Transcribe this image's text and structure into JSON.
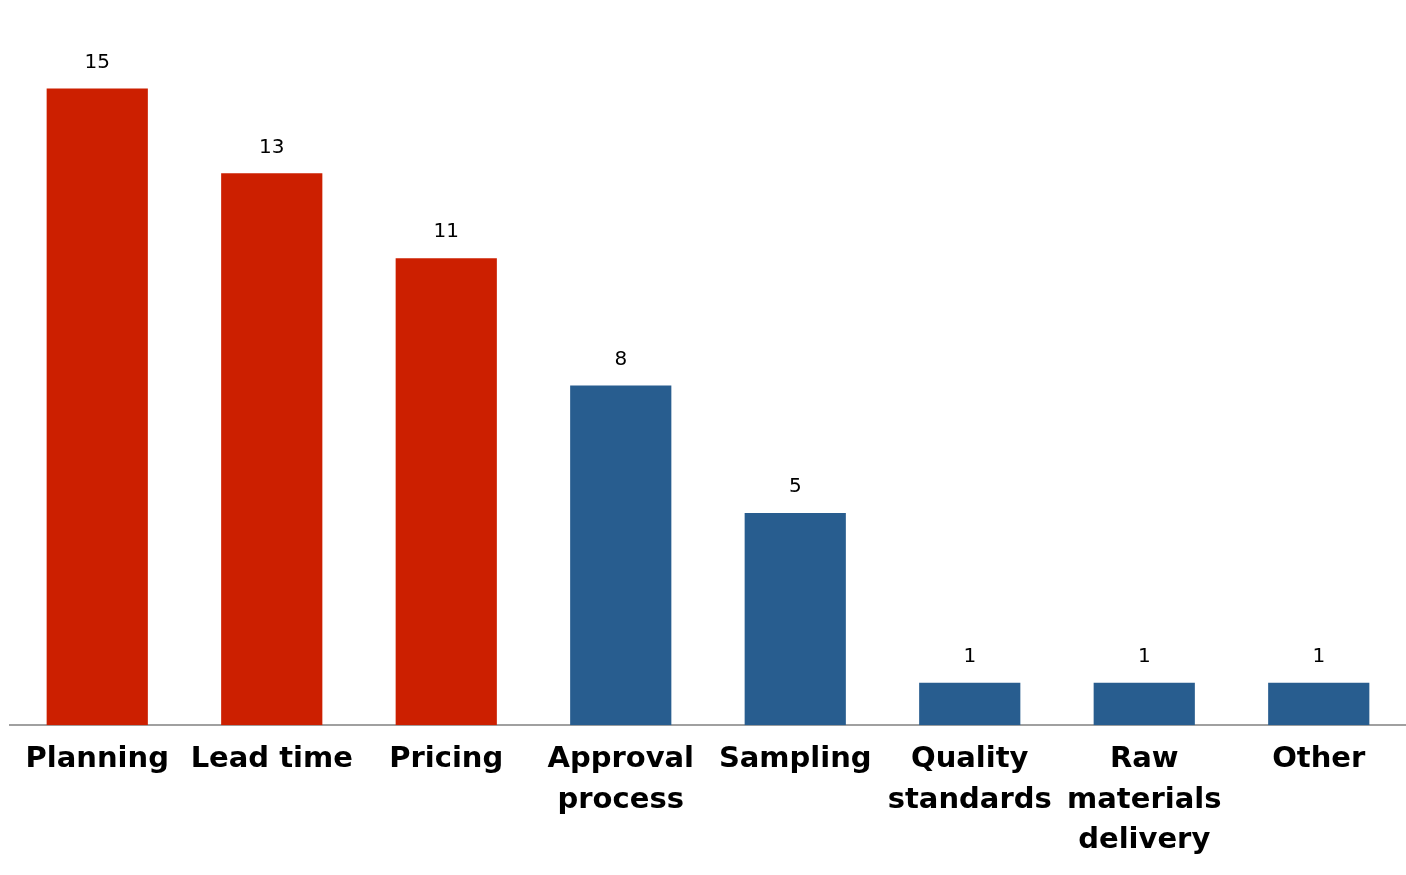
{
  "chart_data": {
    "type": "bar",
    "categories": [
      "Planning",
      "Lead time",
      "Pricing",
      "Approval process",
      "Sampling",
      "Quality standards",
      "Raw materials delivery",
      "Other"
    ],
    "values": [
      15,
      13,
      11,
      8,
      5,
      1,
      1,
      1
    ],
    "colors": [
      "#cc1f00",
      "#cc1f00",
      "#cc1f00",
      "#285d8f",
      "#285d8f",
      "#285d8f",
      "#285d8f",
      "#285d8f"
    ],
    "data_labels": true,
    "grid": false,
    "legend": false
  }
}
